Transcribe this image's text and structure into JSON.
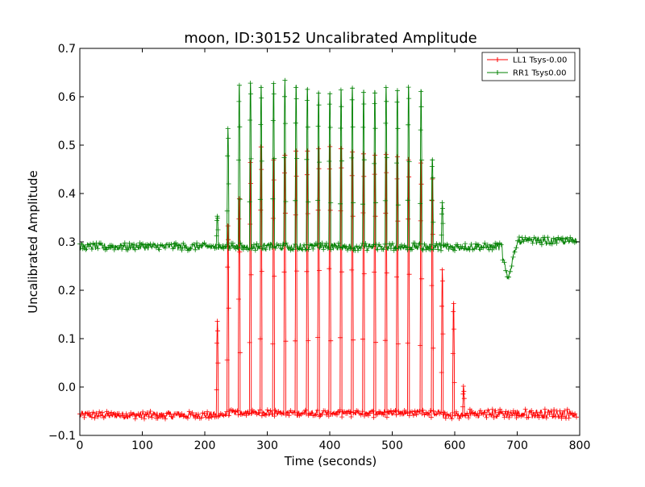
{
  "chart_data": {
    "type": "line",
    "title": "moon, ID:30152 Uncalibrated Amplitude",
    "xlabel": "Time (seconds)",
    "ylabel": "Uncalibrated Amplitude",
    "xlim": [
      0,
      800
    ],
    "ylim": [
      -0.1,
      0.7
    ],
    "xticks": [
      "0",
      "100",
      "200",
      "300",
      "400",
      "500",
      "600",
      "700",
      "800"
    ],
    "yticks": [
      "−0.1",
      "0.0",
      "0.1",
      "0.2",
      "0.3",
      "0.4",
      "0.5",
      "0.6",
      "0.7"
    ],
    "grid": false,
    "legend_position": "top-right",
    "series": [
      {
        "name": "LL1 Tsys-0.00",
        "color": "#ff0000",
        "marker": "+",
        "baseline_level": -0.058,
        "peaks": [
          {
            "x": 220,
            "y": 0.14
          },
          {
            "x": 237,
            "y": 0.35
          },
          {
            "x": 255,
            "y": 0.4
          },
          {
            "x": 273,
            "y": 0.48
          },
          {
            "x": 290,
            "y": 0.51
          },
          {
            "x": 310,
            "y": 0.49
          },
          {
            "x": 328,
            "y": 0.5
          },
          {
            "x": 346,
            "y": 0.5
          },
          {
            "x": 364,
            "y": 0.5
          },
          {
            "x": 382,
            "y": 0.51
          },
          {
            "x": 400,
            "y": 0.51
          },
          {
            "x": 418,
            "y": 0.51
          },
          {
            "x": 436,
            "y": 0.5
          },
          {
            "x": 454,
            "y": 0.5
          },
          {
            "x": 472,
            "y": 0.5
          },
          {
            "x": 490,
            "y": 0.5
          },
          {
            "x": 508,
            "y": 0.49
          },
          {
            "x": 526,
            "y": 0.49
          },
          {
            "x": 546,
            "y": 0.48
          },
          {
            "x": 564,
            "y": 0.44
          },
          {
            "x": 580,
            "y": 0.25
          },
          {
            "x": 598,
            "y": 0.18
          },
          {
            "x": 614,
            "y": 0.0
          }
        ]
      },
      {
        "name": "RR1 Tsys0.00",
        "color": "#008000",
        "marker": "+",
        "baseline_level": 0.29,
        "dip": {
          "x": 685,
          "y": 0.22
        },
        "peaks": [
          {
            "x": 220,
            "y": 0.36
          },
          {
            "x": 237,
            "y": 0.54
          },
          {
            "x": 255,
            "y": 0.63
          },
          {
            "x": 273,
            "y": 0.64
          },
          {
            "x": 290,
            "y": 0.63
          },
          {
            "x": 310,
            "y": 0.64
          },
          {
            "x": 328,
            "y": 0.64
          },
          {
            "x": 346,
            "y": 0.63
          },
          {
            "x": 364,
            "y": 0.63
          },
          {
            "x": 382,
            "y": 0.62
          },
          {
            "x": 400,
            "y": 0.62
          },
          {
            "x": 418,
            "y": 0.62
          },
          {
            "x": 436,
            "y": 0.63
          },
          {
            "x": 454,
            "y": 0.62
          },
          {
            "x": 472,
            "y": 0.62
          },
          {
            "x": 490,
            "y": 0.63
          },
          {
            "x": 508,
            "y": 0.62
          },
          {
            "x": 526,
            "y": 0.63
          },
          {
            "x": 546,
            "y": 0.62
          },
          {
            "x": 564,
            "y": 0.48
          },
          {
            "x": 580,
            "y": 0.38
          }
        ]
      }
    ]
  }
}
